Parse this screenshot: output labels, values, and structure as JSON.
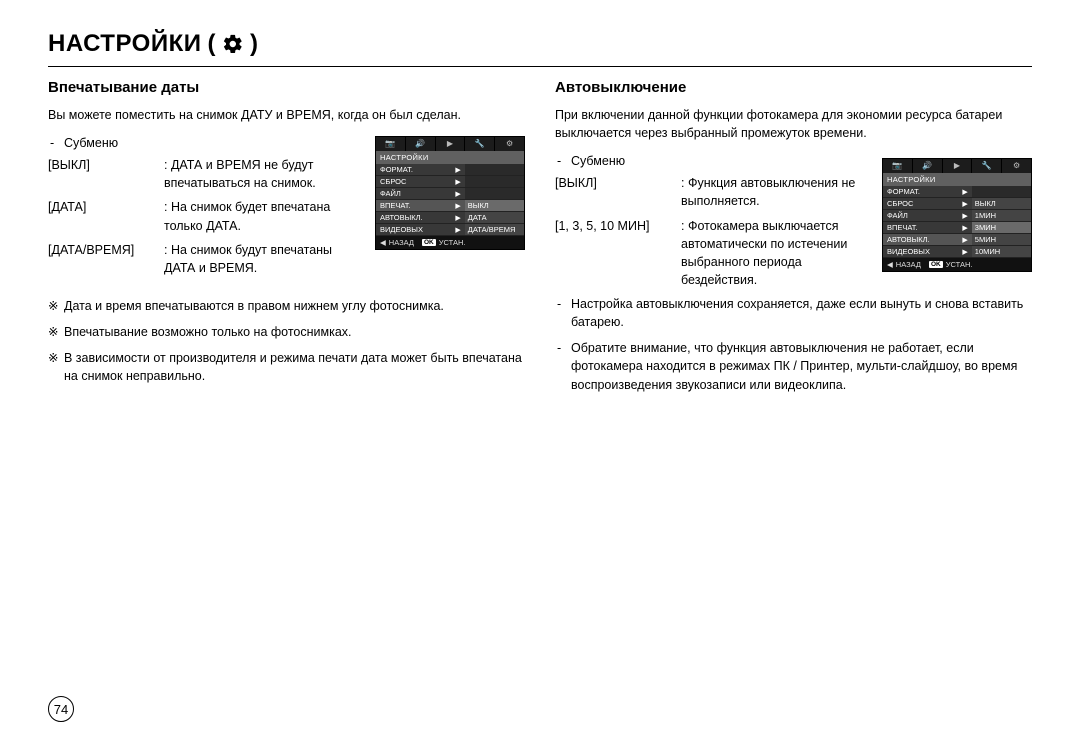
{
  "page": {
    "title": "НАСТРОЙКИ",
    "number": "74"
  },
  "left": {
    "title": "Впечатывание даты",
    "intro": "Вы можете поместить на снимок ДАТУ и ВРЕМЯ, когда он был сделан.",
    "submenu_label": "Субменю",
    "defs": [
      {
        "key": "[ВЫКЛ]",
        "val": ": ДАТА и ВРЕМЯ не будут впечатываться на снимок."
      },
      {
        "key": "[ДАТА]",
        "val": ": На снимок будет впечатана только ДАТА."
      },
      {
        "key": "[ДАТА/ВРЕМЯ]",
        "val": ": На снимок будут впечатаны ДАТА и ВРЕМЯ."
      }
    ],
    "notes": [
      "Дата и время впечатываются в правом нижнем углу фотоснимка.",
      "Впечатывание возможно только на фотоснимках.",
      "В зависимости от производителя и режима печати дата может быть впечатана на снимок неправильно."
    ],
    "cam": {
      "tabs": [
        "📷",
        "🔊",
        "▶",
        "🔧",
        "⚙"
      ],
      "header": "НАСТРОЙКИ",
      "rows": [
        {
          "left": "ФОРМАТ.",
          "right": ""
        },
        {
          "left": "СБРОС",
          "right": ""
        },
        {
          "left": "ФАЙЛ",
          "right": ""
        },
        {
          "left": "ВПЕЧАТ.",
          "sel": true,
          "right": "ВЫКЛ",
          "rsel": true
        },
        {
          "left": "АВТОВЫКЛ.",
          "right": "ДАТА"
        },
        {
          "left": "ВИДЕОВЫХ",
          "right": "ДАТА/ВРЕМЯ"
        }
      ],
      "footer": {
        "back_sym": "◀",
        "back": "НАЗАД",
        "ok": "OK",
        "set": "УСТАН."
      }
    }
  },
  "right": {
    "title": "Автовыключение",
    "intro": "При включении данной функции фотокамера для экономии ресурса батареи выключается через выбранный промежуток времени.",
    "submenu_label": "Субменю",
    "defs": [
      {
        "key": "[ВЫКЛ]",
        "val": ": Функция автовыключения не выполняется."
      },
      {
        "key": "[1, 3, 5, 10 МИН]",
        "val": ": Фотокамера выключается автоматически по истечении выбранного периода бездействия."
      }
    ],
    "bullets": [
      "Настройка автовыключения сохраняется, даже если вынуть и снова вставить батарею.",
      "Обратите внимание, что функция автовыключения не работает, если фотокамера находится в режимах ПК / Принтер, мульти-слайдшоу, во время воспроизведения звукозаписи или видеоклипа."
    ],
    "cam": {
      "tabs": [
        "📷",
        "🔊",
        "▶",
        "🔧",
        "⚙"
      ],
      "header": "НАСТРОЙКИ",
      "rows": [
        {
          "left": "ФОРМАТ.",
          "right": ""
        },
        {
          "left": "СБРОС",
          "right": "ВЫКЛ"
        },
        {
          "left": "ФАЙЛ",
          "right": "1МИН"
        },
        {
          "left": "ВПЕЧАТ.",
          "right": "3МИН",
          "rsel": true
        },
        {
          "left": "АВТОВЫКЛ.",
          "sel": true,
          "right": "5МИН"
        },
        {
          "left": "ВИДЕОВЫХ",
          "right": "10МИН"
        }
      ],
      "footer": {
        "back_sym": "◀",
        "back": "НАЗАД",
        "ok": "OK",
        "set": "УСТАН."
      }
    }
  }
}
